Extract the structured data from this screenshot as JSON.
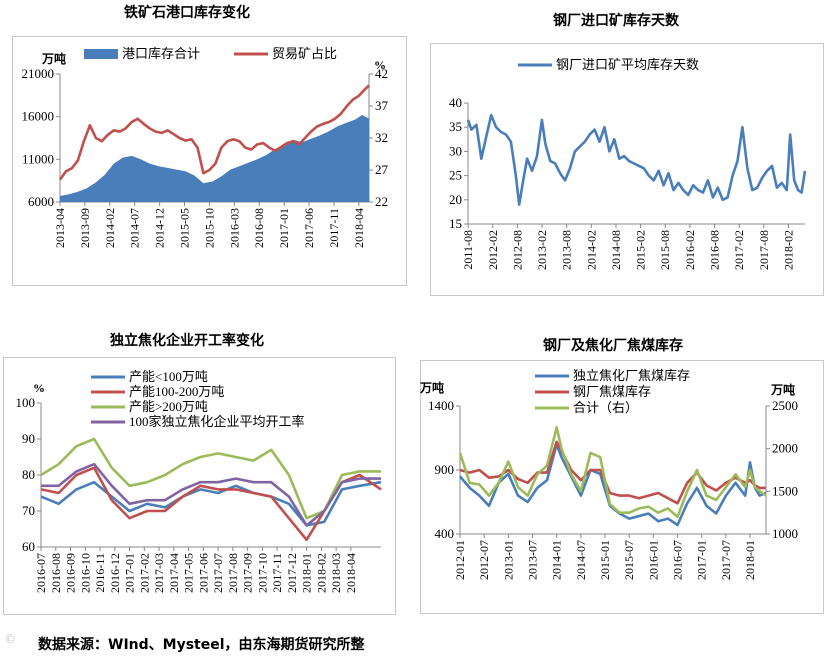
{
  "source": "数据来源：WInd、Mysteel，由东海期货研究所整",
  "watermark": "©",
  "chart_data": [
    {
      "id": "c1",
      "type": "area+line",
      "title": "铁矿石港口库存变化",
      "left_unit": "万吨",
      "right_unit": "%",
      "ylim": [
        6000,
        21000
      ],
      "yticks": [
        6000,
        11000,
        16000,
        21000
      ],
      "y2lim": [
        22,
        42
      ],
      "y2ticks": [
        22,
        27,
        32,
        37,
        42
      ],
      "xlim": [
        2013.25,
        2018.42
      ],
      "xticks": [
        "2013-04",
        "2013-09",
        "2014-02",
        "2014-07",
        "2014-12",
        "2015-05",
        "2015-10",
        "2016-03",
        "2016-08",
        "2017-01",
        "2017-06",
        "2017-11",
        "2018-04"
      ],
      "series": [
        {
          "name": "港口库存合计",
          "kind": "area",
          "axis": "left",
          "color": "#4a7ebb",
          "x": [
            2013.25,
            2013.4,
            2013.55,
            2013.7,
            2013.85,
            2014.0,
            2014.15,
            2014.3,
            2014.45,
            2014.6,
            2014.75,
            2014.9,
            2015.05,
            2015.2,
            2015.35,
            2015.5,
            2015.65,
            2015.8,
            2015.95,
            2016.1,
            2016.25,
            2016.4,
            2016.55,
            2016.7,
            2016.85,
            2017.0,
            2017.15,
            2017.3,
            2017.45,
            2017.6,
            2017.75,
            2017.9,
            2018.05,
            2018.2,
            2018.3,
            2018.42
          ],
          "values": [
            6700,
            6900,
            7200,
            7600,
            8300,
            9200,
            10500,
            11200,
            11400,
            11000,
            10500,
            10200,
            10000,
            9800,
            9600,
            9100,
            8200,
            8400,
            9000,
            9800,
            10200,
            10600,
            11000,
            11500,
            12200,
            12800,
            13300,
            13000,
            13400,
            13800,
            14300,
            14900,
            15300,
            15700,
            16200,
            15800
          ]
        },
        {
          "name": "贸易矿占比",
          "kind": "line",
          "axis": "right",
          "color": "#c0504d",
          "x": [
            2013.25,
            2013.35,
            2013.45,
            2013.55,
            2013.65,
            2013.75,
            2013.85,
            2013.95,
            2014.05,
            2014.15,
            2014.25,
            2014.35,
            2014.45,
            2014.55,
            2014.65,
            2014.75,
            2014.85,
            2014.95,
            2015.05,
            2015.15,
            2015.25,
            2015.35,
            2015.45,
            2015.55,
            2015.65,
            2015.75,
            2015.85,
            2015.95,
            2016.05,
            2016.15,
            2016.25,
            2016.35,
            2016.45,
            2016.55,
            2016.65,
            2016.75,
            2016.85,
            2016.95,
            2017.05,
            2017.15,
            2017.25,
            2017.35,
            2017.45,
            2017.55,
            2017.65,
            2017.75,
            2017.85,
            2017.95,
            2018.05,
            2018.15,
            2018.25,
            2018.35,
            2018.42
          ],
          "values": [
            25.5,
            26.8,
            27.3,
            28.5,
            31.5,
            34.0,
            32.0,
            31.5,
            32.5,
            33.2,
            33.0,
            33.5,
            34.5,
            35.0,
            34.2,
            33.5,
            33.0,
            32.8,
            33.2,
            32.6,
            32.0,
            31.6,
            31.8,
            30.5,
            26.5,
            27.0,
            28.0,
            30.5,
            31.5,
            31.8,
            31.5,
            30.5,
            30.2,
            31.0,
            31.2,
            30.5,
            30.0,
            30.6,
            31.2,
            31.5,
            31.0,
            32.0,
            33.0,
            33.8,
            34.2,
            34.5,
            35.0,
            35.8,
            37.0,
            38.0,
            38.6,
            39.6,
            40.2
          ]
        }
      ]
    },
    {
      "id": "c2",
      "type": "line",
      "title": "钢厂进口矿库存天数",
      "ylim": [
        15,
        40
      ],
      "yticks": [
        15,
        20,
        25,
        30,
        35,
        40
      ],
      "xlim": [
        2011.58,
        2018.42
      ],
      "xticks": [
        "2011-08",
        "2012-02",
        "2012-08",
        "2013-02",
        "2013-08",
        "2014-02",
        "2014-08",
        "2015-02",
        "2015-08",
        "2016-02",
        "2016-08",
        "2017-02",
        "2017-08",
        "2018-02"
      ],
      "series": [
        {
          "name": "钢厂进口矿平均库存天数",
          "color": "#4a7ebb",
          "x": [
            2011.58,
            2011.65,
            2011.75,
            2011.85,
            2011.95,
            2012.05,
            2012.15,
            2012.25,
            2012.35,
            2012.45,
            2012.55,
            2012.62,
            2012.7,
            2012.78,
            2012.88,
            2012.98,
            2013.08,
            2013.15,
            2013.25,
            2013.35,
            2013.45,
            2013.55,
            2013.65,
            2013.75,
            2013.85,
            2013.95,
            2014.05,
            2014.15,
            2014.25,
            2014.35,
            2014.45,
            2014.55,
            2014.65,
            2014.75,
            2014.85,
            2014.95,
            2015.05,
            2015.15,
            2015.25,
            2015.35,
            2015.45,
            2015.55,
            2015.65,
            2015.75,
            2015.85,
            2015.95,
            2016.05,
            2016.15,
            2016.25,
            2016.35,
            2016.45,
            2016.55,
            2016.65,
            2016.75,
            2016.85,
            2016.95,
            2017.05,
            2017.15,
            2017.25,
            2017.35,
            2017.45,
            2017.55,
            2017.65,
            2017.75,
            2017.85,
            2017.95,
            2018.05,
            2018.12,
            2018.2,
            2018.28,
            2018.35,
            2018.42
          ],
          "values": [
            36.5,
            34.5,
            35.5,
            28.5,
            33.0,
            37.5,
            35.0,
            34.0,
            33.5,
            32.0,
            25.0,
            19.0,
            24.0,
            28.5,
            26.0,
            29.0,
            36.5,
            31.5,
            28.0,
            27.5,
            25.5,
            24.0,
            26.5,
            30.0,
            31.0,
            32.0,
            33.5,
            34.5,
            32.0,
            35.0,
            30.0,
            32.5,
            28.5,
            29.0,
            28.0,
            27.5,
            27.0,
            26.5,
            25.0,
            24.0,
            26.0,
            23.0,
            25.5,
            22.0,
            23.5,
            22.0,
            21.0,
            23.0,
            22.0,
            21.5,
            24.0,
            20.5,
            22.5,
            20.0,
            20.5,
            25.0,
            28.0,
            35.0,
            26.5,
            22.0,
            22.5,
            24.5,
            26.0,
            27.0,
            22.5,
            23.5,
            22.0,
            33.5,
            24.0,
            22.0,
            21.5,
            26.0
          ]
        }
      ]
    },
    {
      "id": "c3",
      "type": "line",
      "title": "独立焦化企业开工率变化",
      "left_unit": "%",
      "ylim": [
        60,
        100
      ],
      "yticks": [
        60,
        70,
        80,
        90,
        100
      ],
      "xlim": [
        2016.5,
        2018.42
      ],
      "xticks": [
        "2016-07",
        "2016-08",
        "2016-09",
        "2016-10",
        "2016-11",
        "2016-12",
        "2017-01",
        "2017-02",
        "2017-03",
        "2017-04",
        "2017-05",
        "2017-06",
        "2017-07",
        "2017-08",
        "2017-09",
        "2017-10",
        "2017-11",
        "2017-12",
        "2018-01",
        "2018-02",
        "2018-03",
        "2018-04"
      ],
      "series": [
        {
          "name": "产能<100万吨",
          "color": "#4a7ebb",
          "x": [
            2016.5,
            2016.6,
            2016.7,
            2016.8,
            2016.9,
            2017.0,
            2017.1,
            2017.2,
            2017.3,
            2017.4,
            2017.5,
            2017.6,
            2017.7,
            2017.8,
            2017.9,
            2018.0,
            2018.1,
            2018.2,
            2018.3,
            2018.42
          ],
          "values": [
            74,
            72,
            76,
            78,
            74,
            70,
            72,
            71,
            74,
            76,
            75,
            77,
            75,
            74,
            72,
            66,
            67,
            76,
            77,
            78
          ]
        },
        {
          "name": "产能100-200万吨",
          "color": "#c0504d",
          "x": [
            2016.5,
            2016.6,
            2016.7,
            2016.8,
            2016.9,
            2017.0,
            2017.1,
            2017.2,
            2017.3,
            2017.4,
            2017.5,
            2017.6,
            2017.7,
            2017.8,
            2017.9,
            2018.0,
            2018.1,
            2018.2,
            2018.3,
            2018.42
          ],
          "values": [
            76,
            75,
            80,
            82,
            73,
            68,
            70,
            70,
            74,
            77,
            76,
            76,
            75,
            74,
            68,
            62,
            70,
            78,
            80,
            76
          ]
        },
        {
          "name": "产能>200万吨",
          "color": "#9bbb59",
          "x": [
            2016.5,
            2016.6,
            2016.7,
            2016.8,
            2016.9,
            2017.0,
            2017.1,
            2017.2,
            2017.3,
            2017.4,
            2017.5,
            2017.6,
            2017.7,
            2017.8,
            2017.9,
            2018.0,
            2018.1,
            2018.2,
            2018.3,
            2018.42
          ],
          "values": [
            80,
            83,
            88,
            90,
            82,
            77,
            78,
            80,
            83,
            85,
            86,
            85,
            84,
            87,
            80,
            68,
            70,
            80,
            81,
            81
          ]
        },
        {
          "name": "100家独立焦化企业平均开工率",
          "color": "#8064a2",
          "x": [
            2016.5,
            2016.6,
            2016.7,
            2016.8,
            2016.9,
            2017.0,
            2017.1,
            2017.2,
            2017.3,
            2017.4,
            2017.5,
            2017.6,
            2017.7,
            2017.8,
            2017.9,
            2018.0,
            2018.1,
            2018.2,
            2018.3,
            2018.42
          ],
          "values": [
            77,
            77,
            81,
            83,
            77,
            72,
            73,
            73,
            76,
            78,
            78,
            79,
            78,
            78,
            74,
            66,
            70,
            78,
            79,
            79
          ]
        }
      ]
    },
    {
      "id": "c4",
      "type": "line",
      "title": "钢厂及焦化厂焦煤库存",
      "left_unit": "万吨",
      "right_unit": "万吨",
      "ylim": [
        400,
        1400
      ],
      "yticks": [
        400,
        900,
        1400
      ],
      "y2lim": [
        1000,
        2500
      ],
      "y2ticks": [
        1000,
        1500,
        2000,
        2500
      ],
      "xlim": [
        2012.0,
        2018.33
      ],
      "xticks": [
        "2012-01",
        "2012-07",
        "2013-01",
        "2013-07",
        "2014-01",
        "2014-07",
        "2015-01",
        "2015-07",
        "2016-01",
        "2016-07",
        "2017-01",
        "2017-07",
        "2018-01"
      ],
      "series": [
        {
          "name": "独立焦化厂焦煤库存",
          "axis": "left",
          "color": "#4a7ebb",
          "x": [
            2012.0,
            2012.2,
            2012.4,
            2012.6,
            2012.8,
            2013.0,
            2013.2,
            2013.4,
            2013.6,
            2013.8,
            2014.0,
            2014.1,
            2014.3,
            2014.5,
            2014.7,
            2014.9,
            2015.1,
            2015.3,
            2015.5,
            2015.7,
            2015.9,
            2016.1,
            2016.3,
            2016.5,
            2016.7,
            2016.9,
            2017.1,
            2017.3,
            2017.5,
            2017.7,
            2017.9,
            2018.0,
            2018.1,
            2018.2,
            2018.33
          ],
          "values": [
            850,
            760,
            700,
            620,
            800,
            870,
            700,
            650,
            760,
            820,
            1100,
            1000,
            850,
            700,
            900,
            870,
            620,
            560,
            520,
            540,
            560,
            500,
            520,
            470,
            640,
            760,
            620,
            560,
            700,
            800,
            700,
            960,
            760,
            700,
            720
          ]
        },
        {
          "name": "钢厂焦煤库存",
          "axis": "left",
          "color": "#c0504d",
          "x": [
            2012.0,
            2012.2,
            2012.4,
            2012.6,
            2012.8,
            2013.0,
            2013.2,
            2013.4,
            2013.6,
            2013.8,
            2014.0,
            2014.1,
            2014.3,
            2014.5,
            2014.7,
            2014.9,
            2015.1,
            2015.3,
            2015.5,
            2015.7,
            2015.9,
            2016.1,
            2016.3,
            2016.5,
            2016.7,
            2016.9,
            2017.1,
            2017.3,
            2017.5,
            2017.7,
            2017.9,
            2018.0,
            2018.1,
            2018.2,
            2018.33
          ],
          "values": [
            900,
            880,
            900,
            840,
            850,
            900,
            830,
            800,
            880,
            880,
            1120,
            1050,
            900,
            820,
            900,
            900,
            720,
            700,
            700,
            680,
            700,
            720,
            680,
            640,
            800,
            880,
            780,
            740,
            800,
            840,
            800,
            820,
            780,
            760,
            760
          ]
        },
        {
          "name": "合计（右）",
          "axis": "right",
          "color": "#9bbb59",
          "x": [
            2012.0,
            2012.2,
            2012.4,
            2012.6,
            2012.8,
            2013.0,
            2013.2,
            2013.4,
            2013.6,
            2013.8,
            2014.0,
            2014.1,
            2014.3,
            2014.5,
            2014.7,
            2014.9,
            2015.1,
            2015.3,
            2015.5,
            2015.7,
            2015.9,
            2016.1,
            2016.3,
            2016.5,
            2016.7,
            2016.9,
            2017.1,
            2017.3,
            2017.5,
            2017.7,
            2017.9,
            2018.0,
            2018.1,
            2018.2,
            2018.33
          ],
          "values": [
            1950,
            1600,
            1580,
            1450,
            1600,
            1850,
            1550,
            1450,
            1700,
            1800,
            2250,
            2000,
            1700,
            1500,
            1950,
            1900,
            1350,
            1250,
            1250,
            1300,
            1320,
            1250,
            1300,
            1200,
            1500,
            1750,
            1450,
            1400,
            1550,
            1700,
            1550,
            1750,
            1550,
            1500,
            1450
          ]
        }
      ]
    }
  ]
}
